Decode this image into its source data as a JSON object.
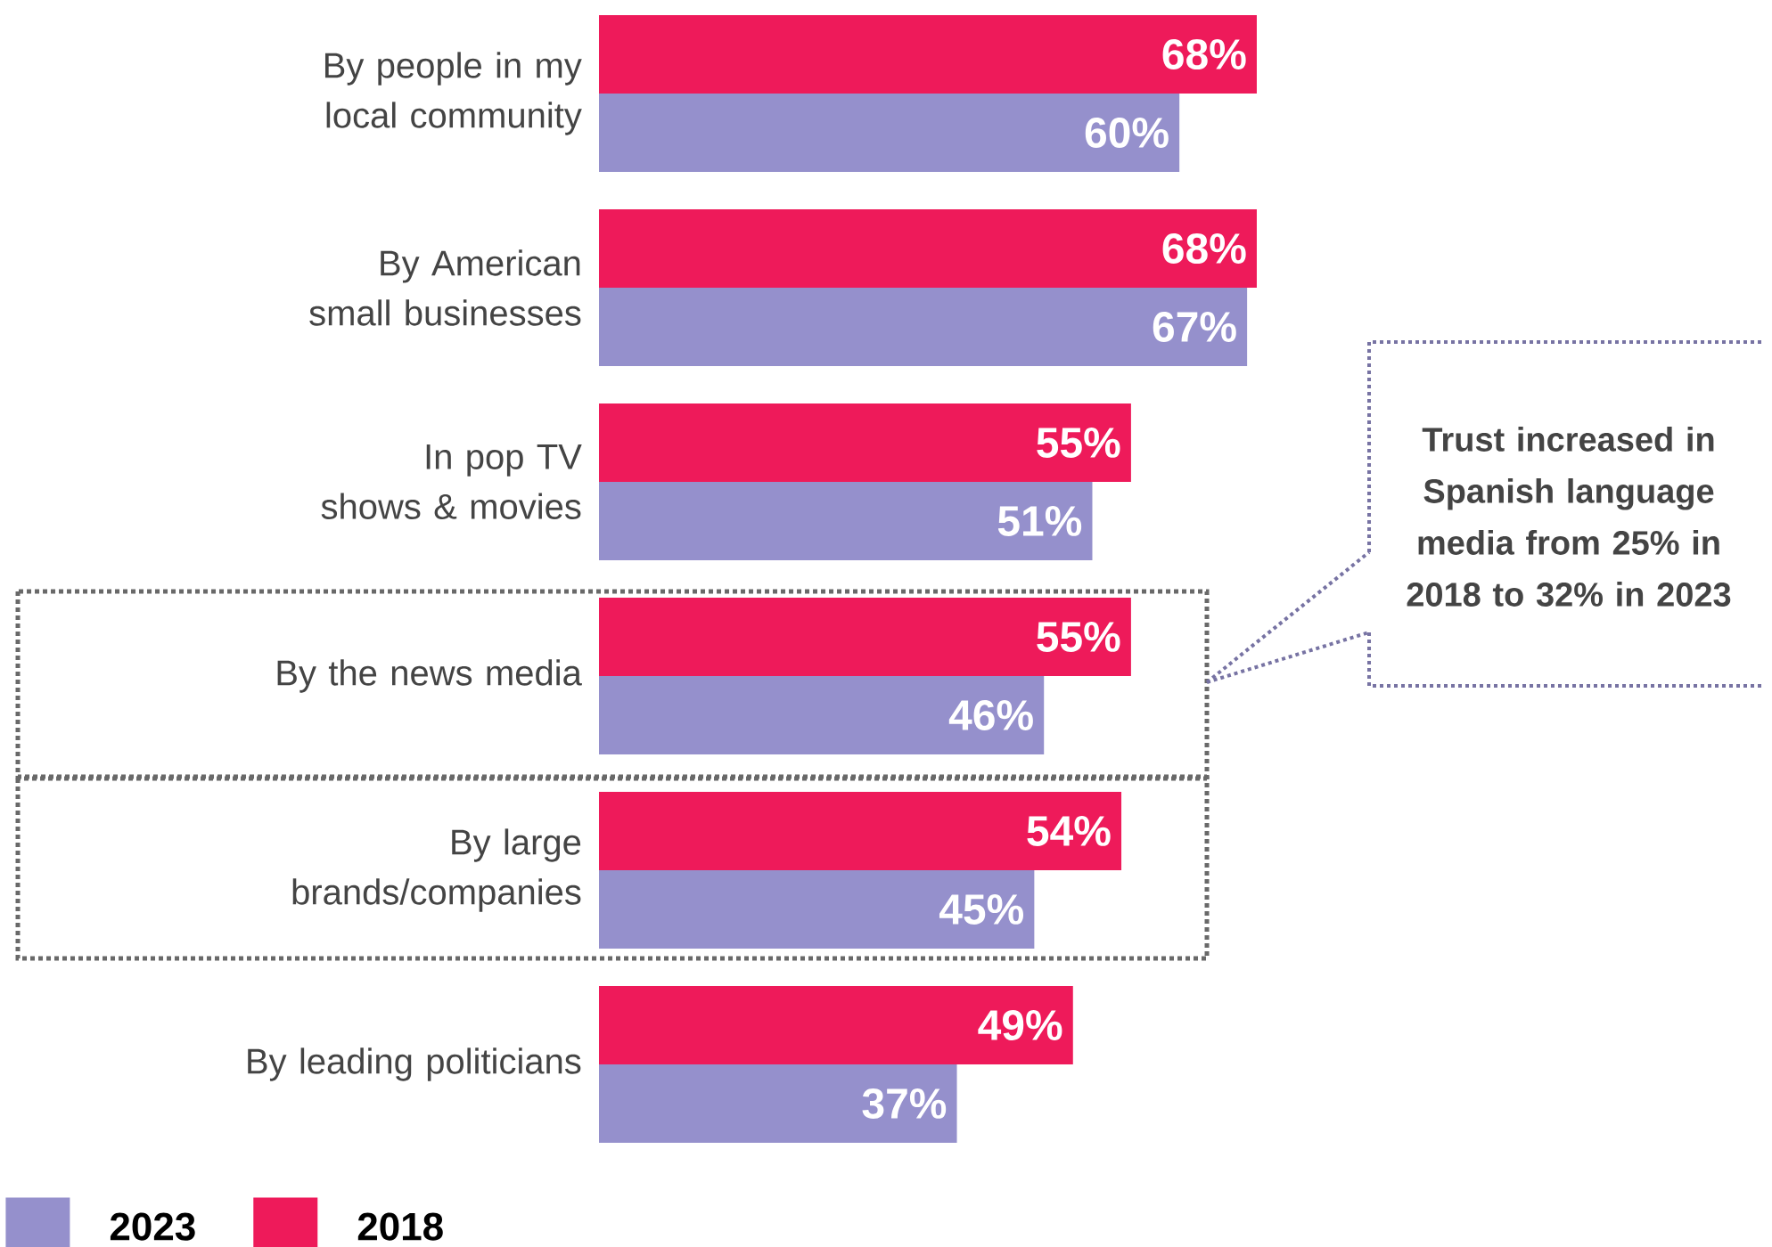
{
  "chart_data": {
    "type": "bar",
    "orientation": "horizontal",
    "categories": [
      "By people in my local community",
      "By American small businesses",
      "In pop TV shows & movies",
      "By the news media",
      "By large brands/companies",
      "By leading politicians"
    ],
    "series": [
      {
        "name": "2018",
        "color": "#ee1a5a",
        "values": [
          68,
          68,
          55,
          55,
          54,
          49
        ],
        "value_labels": [
          "68%",
          "68%",
          "55%",
          "55%",
          "54%",
          "49%"
        ]
      },
      {
        "name": "2023",
        "color": "#9590cc",
        "values": [
          60,
          67,
          51,
          46,
          45,
          37
        ],
        "value_labels": [
          "60%",
          "67%",
          "51%",
          "46%",
          "45%",
          "37%"
        ]
      }
    ],
    "legend": "bottom left",
    "annotations": [
      "Trust increased in Spanish language media from 25% in 2018 to 32% in 2023"
    ]
  }
}
